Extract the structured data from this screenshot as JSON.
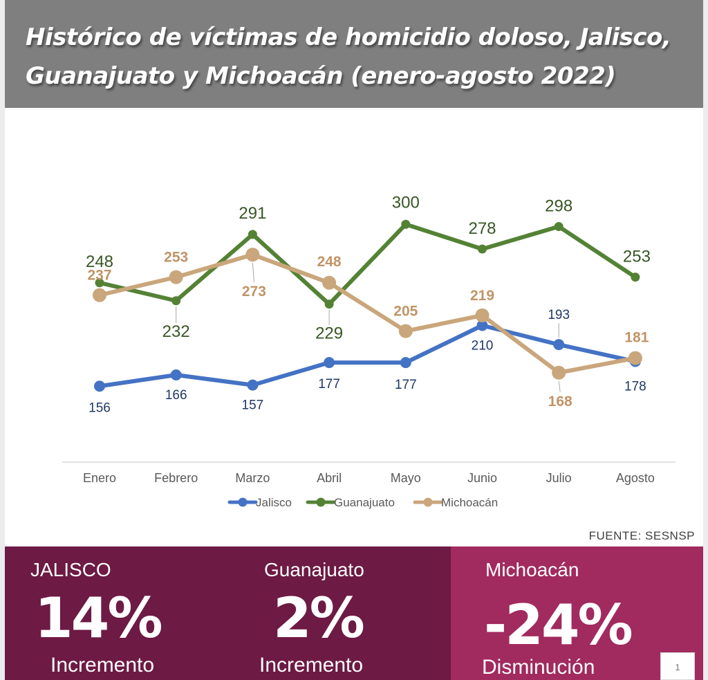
{
  "header": {
    "title": "Histórico de víctimas de homicidio doloso, Jalisco, Guanajuato y Michoacán (enero-agosto 2022)"
  },
  "chart_data": {
    "type": "line",
    "title": "",
    "xlabel": "",
    "ylabel": "",
    "categories": [
      "Enero",
      "Febrero",
      "Marzo",
      "Abril",
      "Mayo",
      "Junio",
      "Julio",
      "Agosto"
    ],
    "ylim": [
      150,
      310
    ],
    "grid": false,
    "legend_position": "bottom",
    "series": [
      {
        "name": "Jalisco",
        "color": "#4472c4",
        "label_color": "#1f3864",
        "values": [
          156,
          166,
          157,
          177,
          177,
          210,
          193,
          178
        ]
      },
      {
        "name": "Guanajuato",
        "color": "#548235",
        "label_color": "#375623",
        "values": [
          248,
          232,
          291,
          229,
          300,
          278,
          298,
          253
        ]
      },
      {
        "name": "Michoacán",
        "color": "#c9a67b",
        "label_color": "#c09467",
        "values": [
          237,
          253,
          273,
          248,
          205,
          219,
          168,
          181
        ]
      }
    ]
  },
  "source": "FUENTE: SESNSP",
  "stats": [
    {
      "name": "JALISCO",
      "value": "14%",
      "label": "Incremento"
    },
    {
      "name": "Guanajuato",
      "value": "2%",
      "label": "Incremento"
    },
    {
      "name": "Michoacán",
      "value": "-24%",
      "label": "Disminución"
    }
  ],
  "page_number": "1",
  "colors": {
    "header_bg": "#7f7f7f",
    "panel_dark": "#6d1a44",
    "panel_accent": "#a12a5f"
  }
}
